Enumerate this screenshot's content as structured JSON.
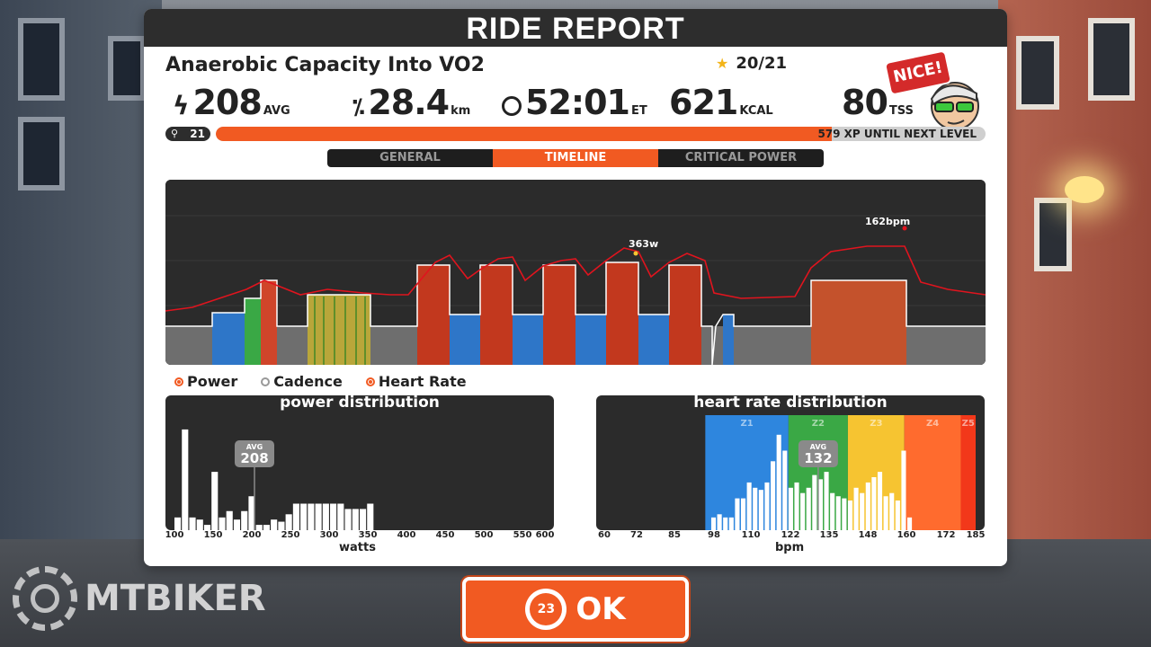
{
  "report": {
    "title": "RIDE REPORT",
    "workout_name": "Anaerobic Capacity Into VO2",
    "stars": "20/21",
    "badge": "NICE!",
    "stats": {
      "power": {
        "icon": "lightning-icon",
        "value": "208",
        "unit": "AVG"
      },
      "distance": {
        "icon": "distance-icon",
        "value": "28.4",
        "unit": "km"
      },
      "time": {
        "icon": "clock-icon",
        "value": "52:01",
        "unit": "ET"
      },
      "energy": {
        "value": "621",
        "unit": "KCAL"
      },
      "tss": {
        "value": "80",
        "unit": "TSS"
      }
    },
    "level": "21",
    "xp": {
      "text": "579 XP UNTIL NEXT LEVEL",
      "progress": 0.8
    }
  },
  "tabs": [
    {
      "label": "GENERAL",
      "active": false
    },
    {
      "label": "TIMELINE",
      "active": true
    },
    {
      "label": "CRITICAL POWER",
      "active": false
    }
  ],
  "legend": [
    {
      "label": "Power",
      "on": true
    },
    {
      "label": "Cadence",
      "on": false
    },
    {
      "label": "Heart Rate",
      "on": true
    }
  ],
  "timeline_annotations": {
    "peak_power": "363w",
    "peak_hr": "162bpm"
  },
  "power_distribution": {
    "title": "power distribution",
    "avg_label": "AVG",
    "avg_value": "208",
    "xlabel": "watts",
    "ticks": [
      "100",
      "150",
      "200",
      "250",
      "300",
      "350",
      "400",
      "450",
      "500",
      "550",
      "600"
    ]
  },
  "hr_distribution": {
    "title": "heart rate distribution",
    "avg_label": "AVG",
    "avg_value": "132",
    "xlabel": "bpm",
    "ticks": [
      "60",
      "72",
      "85",
      "98",
      "110",
      "122",
      "135",
      "148",
      "160",
      "172",
      "185"
    ],
    "zones": [
      {
        "label": "Z1",
        "color": "#2e86de"
      },
      {
        "label": "Z2",
        "color": "#3aa845"
      },
      {
        "label": "Z3",
        "color": "#f6c431"
      },
      {
        "label": "Z4",
        "color": "#ff6b2e"
      },
      {
        "label": "Z5",
        "color": "#f2381a"
      }
    ]
  },
  "ok_button": {
    "countdown": "23",
    "label": "OK"
  },
  "watermark": "MTBIKER",
  "chart_data": [
    {
      "type": "bar",
      "title": "power distribution",
      "xlabel": "watts",
      "ylabel": "",
      "xlim": [
        100,
        600
      ],
      "x": [
        100,
        110,
        120,
        130,
        140,
        150,
        160,
        170,
        180,
        190,
        200,
        210,
        220,
        230,
        240,
        250,
        260,
        270,
        280,
        290,
        300,
        310,
        320,
        330,
        340,
        350,
        360
      ],
      "values": [
        0.12,
        0.95,
        0.12,
        0.1,
        0.05,
        0.55,
        0.12,
        0.18,
        0.1,
        0.18,
        0.32,
        0.05,
        0.05,
        0.1,
        0.08,
        0.15,
        0.25,
        0.25,
        0.25,
        0.25,
        0.25,
        0.25,
        0.25,
        0.2,
        0.2,
        0.2,
        0.25
      ],
      "avg": 208
    },
    {
      "type": "bar",
      "title": "heart rate distribution",
      "xlabel": "bpm",
      "ylabel": "",
      "xlim": [
        60,
        185
      ],
      "x": [
        96,
        98,
        100,
        102,
        104,
        106,
        108,
        110,
        112,
        114,
        116,
        118,
        120,
        122,
        124,
        126,
        128,
        130,
        132,
        134,
        136,
        138,
        140,
        142,
        144,
        146,
        148,
        150,
        152,
        154,
        156,
        158,
        160,
        162
      ],
      "values": [
        0.12,
        0.15,
        0.12,
        0.12,
        0.3,
        0.3,
        0.45,
        0.4,
        0.38,
        0.45,
        0.65,
        0.9,
        0.75,
        0.4,
        0.45,
        0.35,
        0.4,
        0.52,
        0.48,
        0.55,
        0.35,
        0.32,
        0.3,
        0.28,
        0.4,
        0.35,
        0.45,
        0.5,
        0.55,
        0.32,
        0.35,
        0.28,
        0.75,
        0.12
      ],
      "avg": 132
    }
  ]
}
